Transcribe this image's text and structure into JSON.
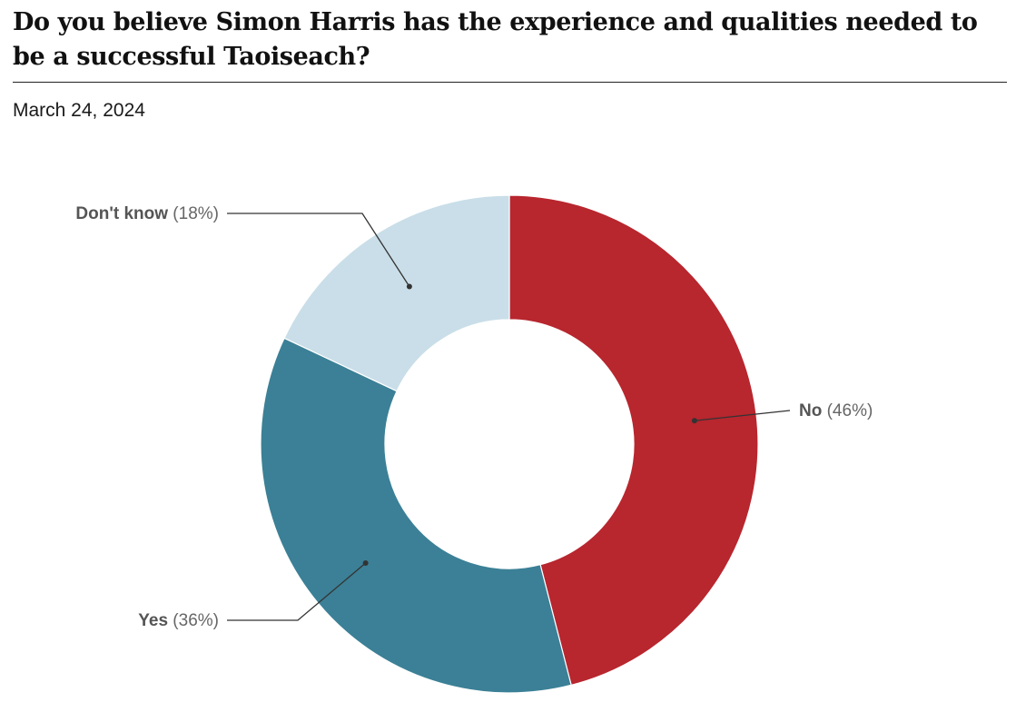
{
  "header": {
    "title": "Do you believe Simon Harris has the experience and qualities needed to be a successful Taoiseach?",
    "date": "March 24, 2024"
  },
  "chart_data": {
    "type": "pie",
    "variant": "donut",
    "title": "Do you believe Simon Harris has the experience and qualities needed to be a successful Taoiseach?",
    "subtitle": "March 24, 2024",
    "slices": [
      {
        "label": "No",
        "value": 46,
        "value_label": "(46%)",
        "color": "#b8262e"
      },
      {
        "label": "Yes",
        "value": 36,
        "value_label": "(36%)",
        "color": "#3b8096"
      },
      {
        "label": "Don't know",
        "value": 18,
        "value_label": "(18%)",
        "color": "#c9dee8"
      }
    ],
    "units": "%",
    "start": "12 o'clock, clockwise"
  },
  "colors": {
    "label_name": "#555555",
    "label_value": "#666666",
    "leader_line": "#333333"
  }
}
